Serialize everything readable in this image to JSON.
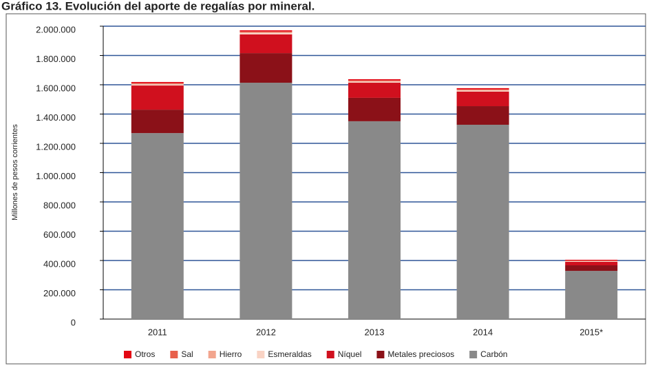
{
  "chart_data": {
    "type": "stacked_bar",
    "title": "Gráfico 13. Evolución del aporte de regalías por mineral.",
    "ylabel": "Millones de pesos corrientes",
    "categories": [
      "2011",
      "2012",
      "2013",
      "2014",
      "2015*"
    ],
    "series": [
      {
        "name": "Carbón",
        "color": "#898989",
        "values": [
          1270000,
          1614000,
          1351000,
          1327000,
          329000
        ]
      },
      {
        "name": "Metales preciosos",
        "color": "#8b1118",
        "values": [
          160000,
          202000,
          160000,
          127000,
          38000
        ]
      },
      {
        "name": "Níquel",
        "color": "#d0101e",
        "values": [
          165000,
          128000,
          103000,
          99000,
          24000
        ]
      },
      {
        "name": "Esmeraldas",
        "color": "#f9d3c4",
        "values": [
          8000,
          10000,
          8000,
          8000,
          4000
        ]
      },
      {
        "name": "Hierro",
        "color": "#f2a58e",
        "values": [
          3000,
          4000,
          3000,
          3000,
          2000
        ]
      },
      {
        "name": "Sal",
        "color": "#e8604c",
        "values": [
          5000,
          6000,
          5000,
          5000,
          3000
        ]
      },
      {
        "name": "Otros",
        "color": "#e30613",
        "values": [
          8000,
          8000,
          8000,
          8000,
          5000
        ]
      }
    ],
    "ylim": [
      0,
      2000000
    ],
    "yticks": [
      0,
      {
        "value": 200000,
        "label": "200.000"
      },
      {
        "value": 400000,
        "label": "400.000"
      },
      {
        "value": 600000,
        "label": "600.000"
      },
      {
        "value": 800000,
        "label": "800.000"
      },
      {
        "value": 1000000,
        "label": "1.000.000"
      },
      {
        "value": 1200000,
        "label": "1.200.000"
      },
      {
        "value": 1400000,
        "label": "1.400.000"
      },
      {
        "value": 1600000,
        "label": "1.600.000"
      },
      {
        "value": 1800000,
        "label": "1.800.000"
      },
      {
        "value": 2000000,
        "label": "2.000.000"
      }
    ],
    "grid": true,
    "grid_color": "#2e5597",
    "legend": "bottom"
  }
}
